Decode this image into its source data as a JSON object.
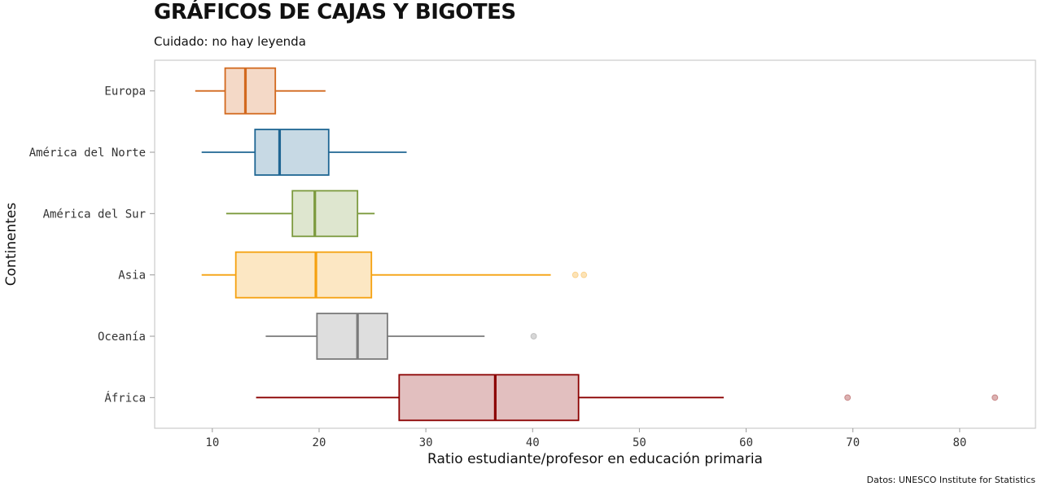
{
  "chart_data": {
    "type": "boxplot",
    "title": "GRÁFICOS DE CAJAS Y BIGOTES",
    "subtitle": "Cuidado: no hay leyenda",
    "caption": "Datos: UNESCO Institute for Statistics",
    "xlabel": "Ratio estudiante/profesor en educación primaria",
    "ylabel": "Continentes",
    "xlim": [
      4.6,
      87.1
    ],
    "xticks": [
      10,
      20,
      30,
      40,
      50,
      60,
      70,
      80
    ],
    "grid": false,
    "orientation": "horizontal",
    "categories": [
      "Europa",
      "América del Norte",
      "América del Sur",
      "Asia",
      "Oceanía",
      "África"
    ],
    "series": [
      {
        "category": "Europa",
        "min": 8.4,
        "q1": 11.2,
        "median": 13.1,
        "q3": 15.9,
        "max": 20.6,
        "outliers": [],
        "color": "#d2691e"
      },
      {
        "category": "América del Norte",
        "min": 9.0,
        "q1": 14.0,
        "median": 16.3,
        "q3": 20.9,
        "max": 28.2,
        "outliers": [],
        "color": "#1f6693"
      },
      {
        "category": "América del Sur",
        "min": 11.3,
        "q1": 17.5,
        "median": 19.6,
        "q3": 23.6,
        "max": 25.2,
        "outliers": [],
        "color": "#7c9a3e"
      },
      {
        "category": "Asia",
        "min": 9.0,
        "q1": 12.2,
        "median": 19.7,
        "q3": 24.9,
        "max": 41.7,
        "outliers": [
          44.0,
          44.8
        ],
        "color": "#f5a10f"
      },
      {
        "category": "Oceanía",
        "min": 15.0,
        "q1": 19.8,
        "median": 23.6,
        "q3": 26.4,
        "max": 35.5,
        "outliers": [
          40.1
        ],
        "color": "#7a7a7a"
      },
      {
        "category": "África",
        "min": 14.1,
        "q1": 27.5,
        "median": 36.5,
        "q3": 44.3,
        "max": 57.9,
        "outliers": [
          69.5,
          83.3
        ],
        "color": "#8b0000"
      }
    ]
  }
}
